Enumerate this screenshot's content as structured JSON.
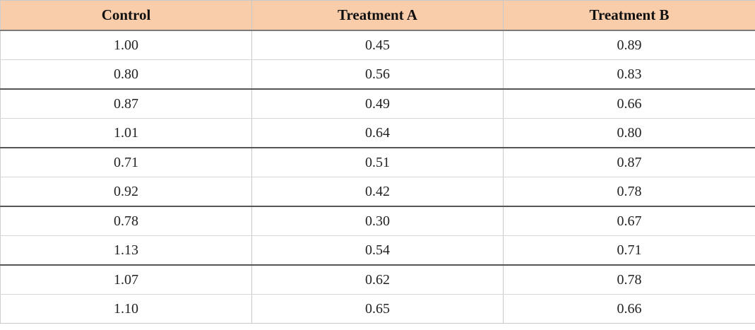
{
  "table": {
    "headers": [
      "Control",
      "Treatment A",
      "Treatment B"
    ],
    "rows": [
      [
        "1.00",
        "0.45",
        "0.89"
      ],
      [
        "0.80",
        "0.56",
        "0.83"
      ],
      [
        "0.87",
        "0.49",
        "0.66"
      ],
      [
        "1.01",
        "0.64",
        "0.80"
      ],
      [
        "0.71",
        "0.51",
        "0.87"
      ],
      [
        "0.92",
        "0.42",
        "0.78"
      ],
      [
        "0.78",
        "0.30",
        "0.67"
      ],
      [
        "1.13",
        "0.54",
        "0.71"
      ],
      [
        "1.07",
        "0.62",
        "0.78"
      ],
      [
        "1.10",
        "0.65",
        "0.66"
      ]
    ]
  },
  "colors": {
    "header_background": "#f9ccaa",
    "grid_line": "#c9c9c9",
    "row_separator": "#555555"
  }
}
